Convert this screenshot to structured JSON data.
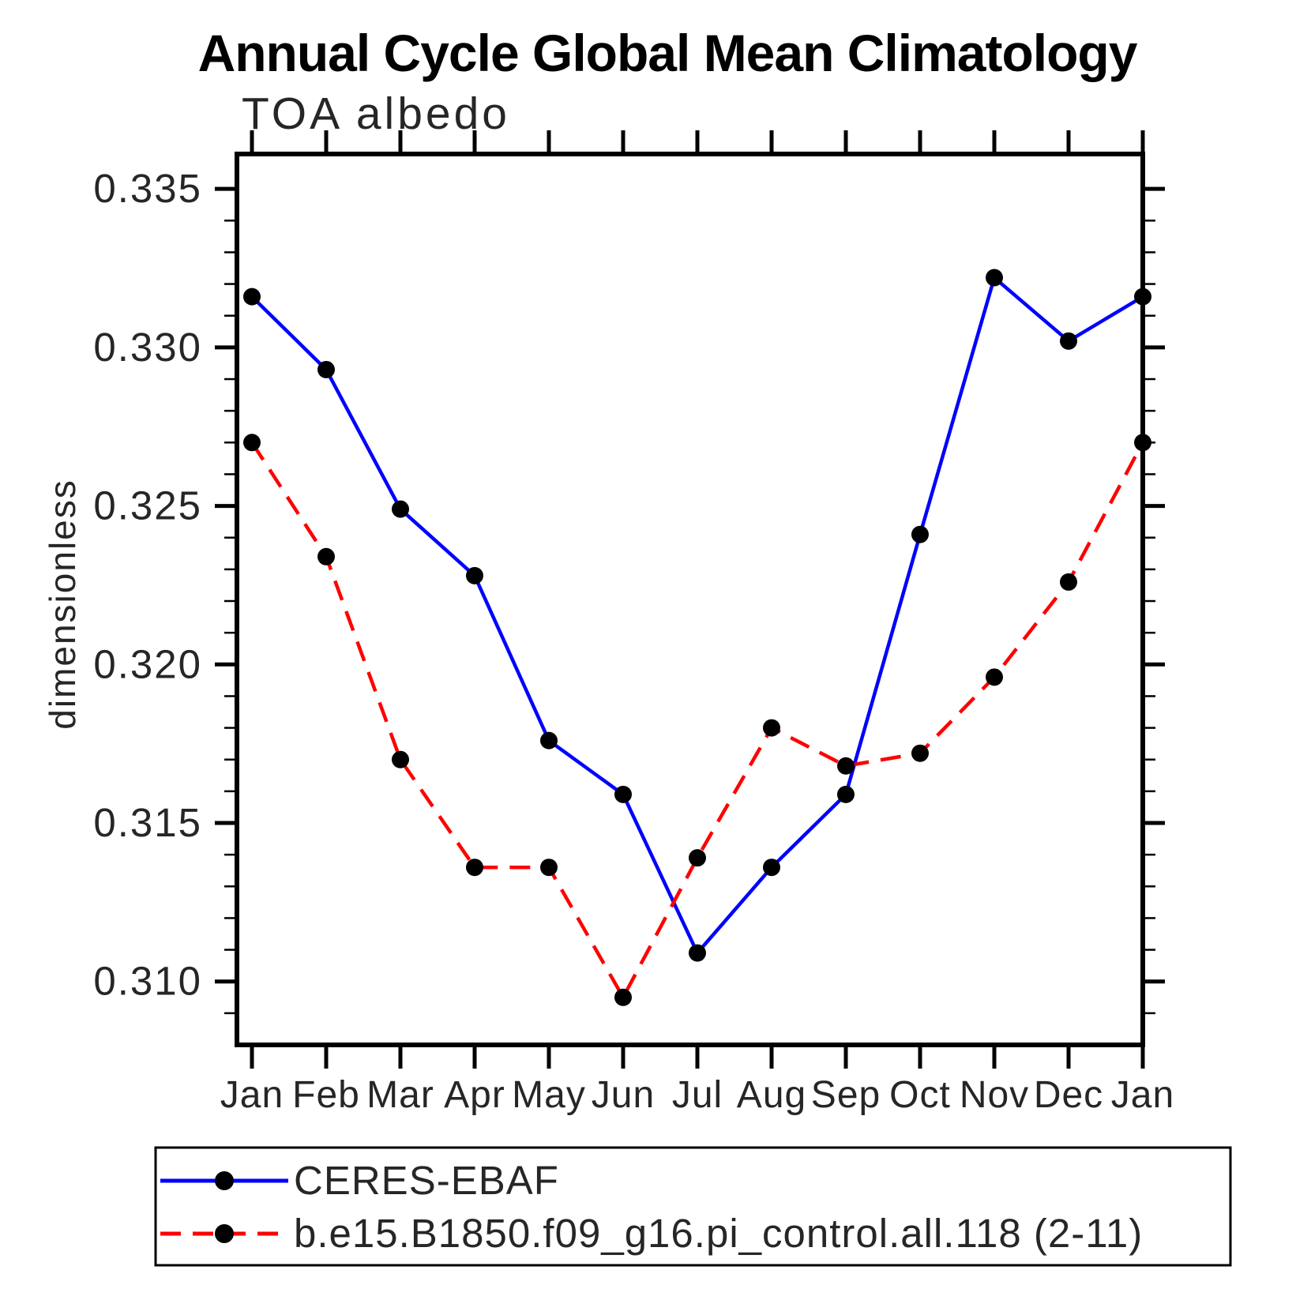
{
  "title": "Annual Cycle Global Mean Climatology",
  "subtitle": "TOA albedo",
  "ylabel": "dimensionless",
  "chart_data": {
    "type": "line",
    "categories": [
      "Jan",
      "Feb",
      "Mar",
      "Apr",
      "May",
      "Jun",
      "Jul",
      "Aug",
      "Sep",
      "Oct",
      "Nov",
      "Dec",
      "Jan"
    ],
    "series": [
      {
        "name": "CERES-EBAF",
        "line_style": "solid",
        "color": "#0000ff",
        "marker": "circle",
        "marker_color": "#000000",
        "values": [
          0.3316,
          0.3293,
          0.3249,
          0.3228,
          0.3176,
          0.3159,
          0.3109,
          0.3136,
          0.3159,
          0.3241,
          0.3322,
          0.3302,
          0.3316
        ]
      },
      {
        "name": "b.e15.B1850.f09_g16.pi_control.all.118 (2-11)",
        "line_style": "dashed",
        "color": "#ff0000",
        "marker": "circle",
        "marker_color": "#000000",
        "values": [
          0.327,
          0.3234,
          0.317,
          0.3136,
          0.3136,
          0.3095,
          0.3139,
          0.318,
          0.3168,
          0.3172,
          0.3196,
          0.3226,
          0.327
        ]
      }
    ],
    "xlabel": "",
    "ylim": [
      0.308,
      0.3361
    ],
    "ytick_labels": [
      "0.310",
      "0.315",
      "0.320",
      "0.325",
      "0.330",
      "0.335"
    ],
    "yticks_major": [
      0.31,
      0.315,
      0.32,
      0.325,
      0.33,
      0.335
    ],
    "ytick_minor_step": 0.001,
    "grid": false,
    "legend_position": "bottom",
    "axis_color": "#000000",
    "background_color": "#ffffff"
  }
}
